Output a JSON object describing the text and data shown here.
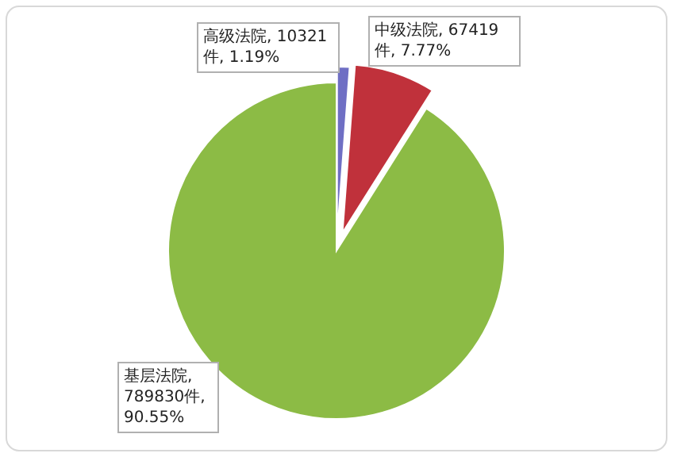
{
  "chart_data": {
    "type": "pie",
    "categories": [
      "高级法院",
      "中级法院",
      "基层法院"
    ],
    "values": [
      10321,
      67419,
      789830
    ],
    "value_labels": [
      ", 10321件, 1.19%",
      ", 67419件, 7.77%",
      ", 789830件, 90.55%"
    ],
    "colors": [
      "#6f6fc4",
      "#c0313b",
      "#8cbb45"
    ],
    "legend": false
  }
}
